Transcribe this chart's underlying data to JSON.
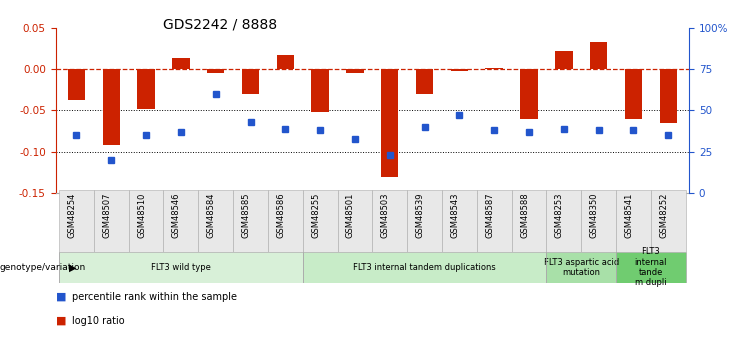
{
  "title": "GDS2242 / 8888",
  "samples": [
    "GSM48254",
    "GSM48507",
    "GSM48510",
    "GSM48546",
    "GSM48584",
    "GSM48585",
    "GSM48586",
    "GSM48255",
    "GSM48501",
    "GSM48503",
    "GSM48539",
    "GSM48543",
    "GSM48587",
    "GSM48588",
    "GSM48253",
    "GSM48350",
    "GSM48541",
    "GSM48252"
  ],
  "log10_ratio": [
    -0.038,
    -0.092,
    -0.048,
    0.013,
    -0.005,
    -0.03,
    0.017,
    -0.052,
    -0.005,
    -0.13,
    -0.03,
    -0.003,
    0.001,
    -0.06,
    0.022,
    0.033,
    -0.06,
    -0.065
  ],
  "percentile_rank": [
    35,
    20,
    35,
    37,
    60,
    43,
    39,
    38,
    33,
    23,
    40,
    47,
    38,
    37,
    39,
    38,
    38,
    35
  ],
  "groups": [
    {
      "label": "FLT3 wild type",
      "start": 0,
      "end": 7,
      "color": "#d8f0d8"
    },
    {
      "label": "FLT3 internal tandem duplications",
      "start": 7,
      "end": 14,
      "color": "#c8ecc8"
    },
    {
      "label": "FLT3 aspartic acid\nmutation",
      "start": 14,
      "end": 16,
      "color": "#a8e0a8"
    },
    {
      "label": "FLT3\ninternal\ntande\nm dupli",
      "start": 16,
      "end": 18,
      "color": "#70cc70"
    }
  ],
  "ylim_left": [
    -0.15,
    0.05
  ],
  "ylim_right": [
    0,
    100
  ],
  "bar_color": "#cc2200",
  "dot_color": "#2255cc",
  "hline_color": "#cc2200",
  "dotted_line_color": "#000000",
  "bg_color": "#ffffff",
  "bar_width": 0.5
}
